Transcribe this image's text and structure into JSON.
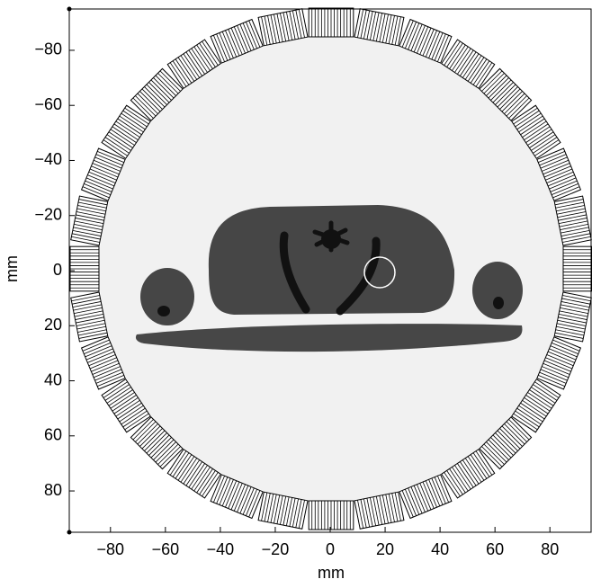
{
  "chart_data": {
    "type": "image",
    "xlabel": "mm",
    "ylabel": "mm",
    "xlim": [
      -95,
      95
    ],
    "ylim": [
      -95,
      95
    ],
    "y_inverted": true,
    "xticks": [
      {
        "value": -80,
        "label": "−80"
      },
      {
        "value": -60,
        "label": "−60"
      },
      {
        "value": -40,
        "label": "−40"
      },
      {
        "value": -20,
        "label": "−20"
      },
      0,
      20,
      40,
      60,
      80
    ],
    "yticks": [
      {
        "value": -80,
        "label": "−80"
      },
      {
        "value": -60,
        "label": "−60"
      },
      {
        "value": -40,
        "label": "−40"
      },
      {
        "value": -20,
        "label": "−20"
      },
      0,
      20,
      40,
      60,
      80
    ]
  }
}
